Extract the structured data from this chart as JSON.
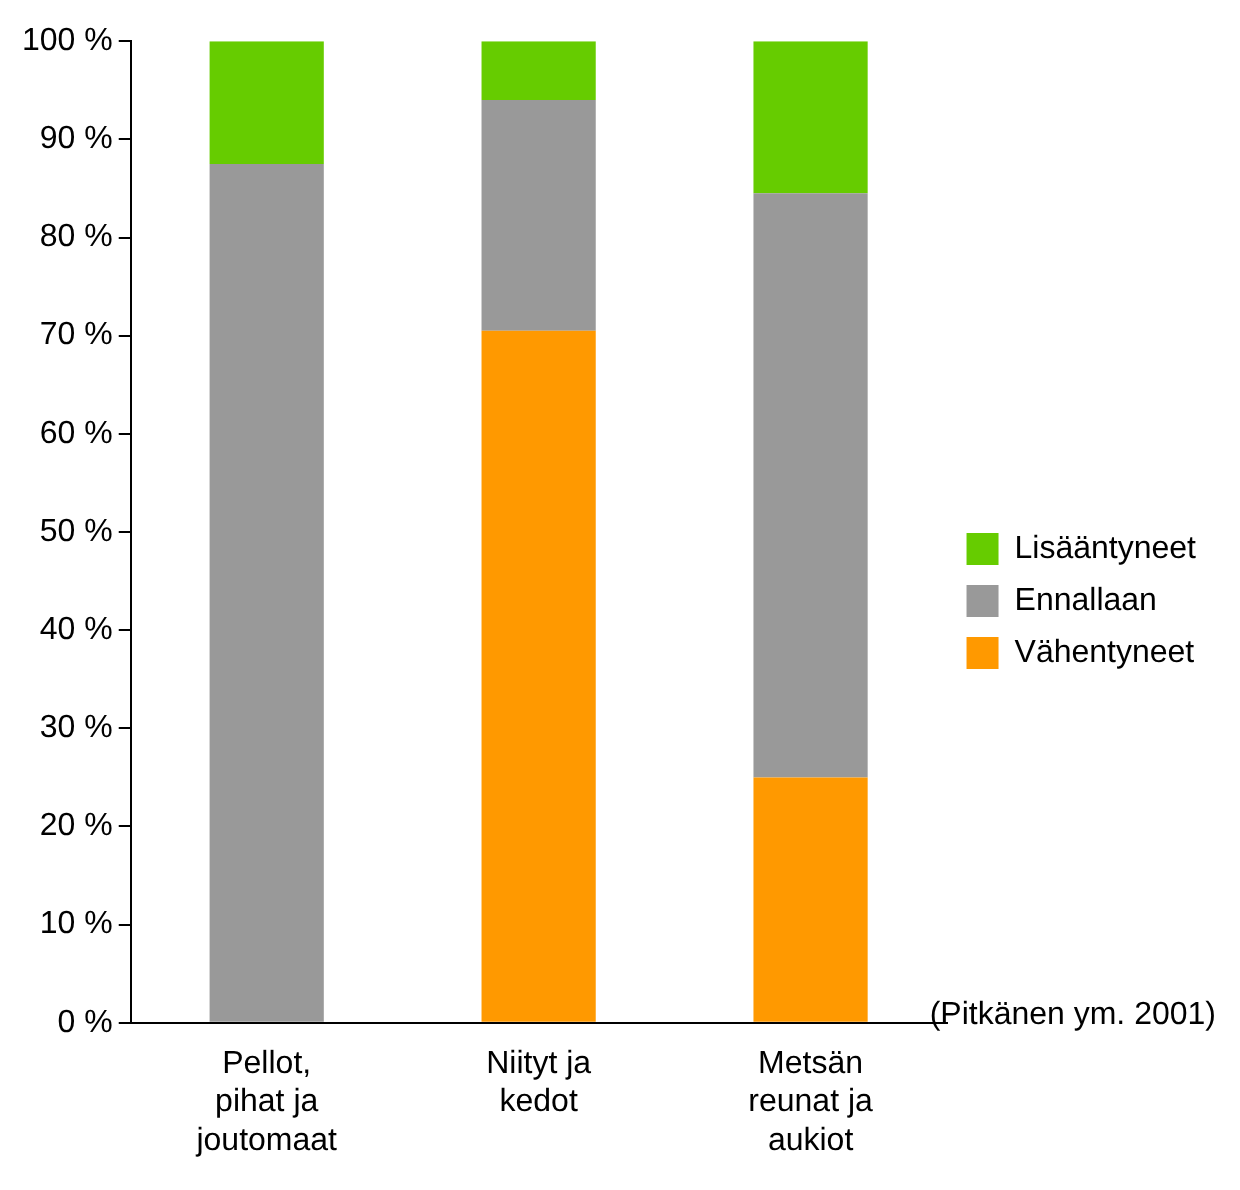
{
  "chart_data": {
    "type": "bar",
    "stacked": true,
    "legend": "right",
    "grid": false,
    "categories": [
      "Pellot, pihat ja joutomaat",
      "Niityt ja kedot",
      "Metsän reunat ja aukiot"
    ],
    "series": [
      {
        "name": "Vähentyneet",
        "color": "#ff9900",
        "values": [
          0,
          70.5,
          25
        ]
      },
      {
        "name": "Ennallaan",
        "color": "#999999",
        "values": [
          87.5,
          23.5,
          59.5
        ]
      },
      {
        "name": "Lisääntyneet",
        "color": "#66cc00",
        "values": [
          12.5,
          6,
          15.5
        ]
      }
    ],
    "ylim": [
      0,
      100
    ],
    "yticks": [
      {
        "value": 0,
        "label": "0 %"
      },
      {
        "value": 10,
        "label": "10 %"
      },
      {
        "value": 20,
        "label": "20 %"
      },
      {
        "value": 30,
        "label": "30 %"
      },
      {
        "value": 40,
        "label": "40 %"
      },
      {
        "value": 50,
        "label": "50 %"
      },
      {
        "value": 60,
        "label": "60 %"
      },
      {
        "value": 70,
        "label": "70 %"
      },
      {
        "value": 80,
        "label": "80 %"
      },
      {
        "value": 90,
        "label": "90 %"
      },
      {
        "value": 100,
        "label": "100 %"
      }
    ],
    "annotations": [
      "(Pitkänen ym. 2001)"
    ]
  }
}
